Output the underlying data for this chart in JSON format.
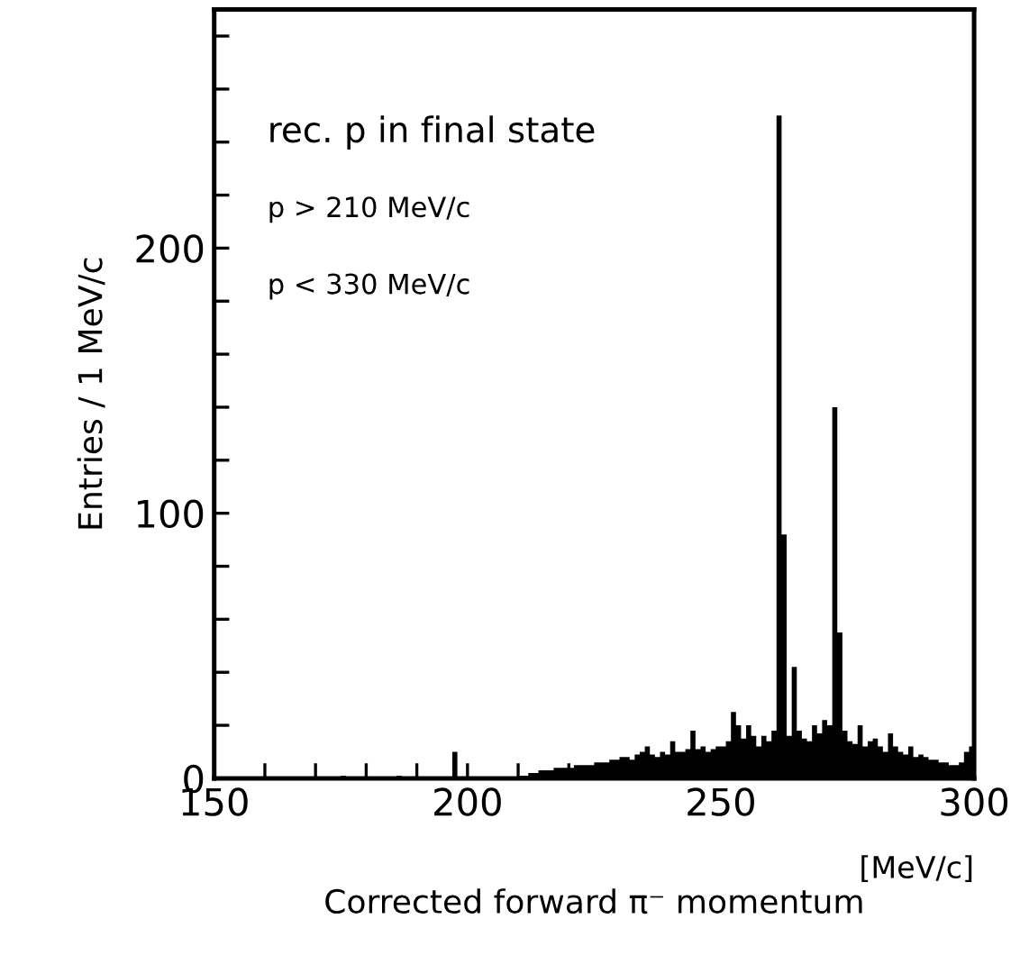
{
  "chart_data": {
    "type": "histogram",
    "xlabel": "Corrected forward π⁻ momentum",
    "ylabel": "Entries / 1 MeV/c",
    "annotations": [
      "rec. p in final state",
      "p > 210 MeV/c",
      "p < 330 MeV/c",
      "[MeV/c]"
    ],
    "bins": [
      150,
      151,
      152,
      153,
      154,
      155,
      156,
      157,
      158,
      159,
      160,
      161,
      162,
      163,
      164,
      165,
      166,
      167,
      168,
      169,
      170,
      171,
      172,
      173,
      174,
      175,
      176,
      177,
      178,
      179,
      180,
      181,
      182,
      183,
      184,
      185,
      186,
      187,
      188,
      189,
      190,
      191,
      192,
      193,
      194,
      195,
      196,
      197,
      198,
      199,
      200,
      201,
      202,
      203,
      204,
      205,
      206,
      207,
      208,
      209,
      210,
      211,
      212,
      213,
      214,
      215,
      216,
      217,
      218,
      219,
      220,
      221,
      222,
      223,
      224,
      225,
      226,
      227,
      228,
      229,
      230,
      231,
      232,
      233,
      234,
      235,
      236,
      237,
      238,
      239,
      240,
      241,
      242,
      243,
      244,
      245,
      246,
      247,
      248,
      249,
      250,
      251,
      252,
      253,
      254,
      255,
      256,
      257,
      258,
      259,
      260,
      261,
      262,
      263,
      264,
      265,
      266,
      267,
      268,
      269,
      270,
      271,
      272,
      273,
      274,
      275,
      276,
      277,
      278,
      279,
      280,
      281,
      282,
      283,
      284,
      285,
      286,
      287,
      288,
      289,
      290,
      291,
      292,
      293,
      294,
      295,
      296,
      297,
      298,
      299,
      300
    ],
    "values": [
      0,
      0,
      0,
      0,
      0,
      0,
      0,
      0,
      0,
      0,
      0,
      0,
      0,
      0,
      0,
      0,
      0,
      0,
      0,
      0,
      0,
      0,
      0,
      0,
      0,
      1,
      0,
      0,
      0,
      0,
      0,
      0,
      0,
      0,
      0,
      0,
      1,
      0,
      0,
      0,
      0,
      0,
      0,
      0,
      0,
      0,
      0,
      10,
      0,
      0,
      0,
      0,
      0,
      0,
      0,
      0,
      0,
      0,
      0,
      0,
      1,
      1,
      2,
      2,
      3,
      3,
      3,
      4,
      4,
      4,
      4,
      5,
      5,
      5,
      5,
      6,
      6,
      6,
      7,
      7,
      8,
      8,
      7,
      9,
      10,
      12,
      9,
      8,
      10,
      9,
      14,
      10,
      10,
      11,
      18,
      11,
      12,
      10,
      11,
      12,
      12,
      14,
      25,
      20,
      15,
      20,
      16,
      12,
      16,
      14,
      18,
      250,
      92,
      16,
      42,
      18,
      15,
      14,
      20,
      17,
      22,
      20,
      140,
      55,
      18,
      14,
      13,
      20,
      12,
      14,
      15,
      12,
      10,
      17,
      12,
      10,
      9,
      12,
      8,
      9,
      8,
      7,
      7,
      6,
      6,
      5,
      5,
      6,
      10,
      12
    ],
    "color": "#000000",
    "xlim": [
      150,
      300
    ],
    "xticks": [
      150,
      {
        "value": 160,
        "label": null
      },
      {
        "value": 170,
        "label": null
      },
      {
        "value": 180,
        "label": null
      },
      {
        "value": 190,
        "label": null
      },
      200,
      {
        "value": 210,
        "label": null
      },
      {
        "value": 220,
        "label": null
      },
      {
        "value": 230,
        "label": null
      },
      {
        "value": 240,
        "label": null
      },
      250,
      {
        "value": 260,
        "label": null
      },
      {
        "value": 270,
        "label": null
      },
      {
        "value": 280,
        "label": null
      },
      {
        "value": 290,
        "label": null
      },
      300
    ],
    "ylim": [
      0,
      290
    ],
    "yticks": [
      0,
      {
        "value": 20,
        "label": null
      },
      {
        "value": 40,
        "label": null
      },
      {
        "value": 60,
        "label": null
      },
      {
        "value": 80,
        "label": null
      },
      100,
      {
        "value": 120,
        "label": null
      },
      {
        "value": 140,
        "label": null
      },
      {
        "value": 160,
        "label": null
      },
      {
        "value": 180,
        "label": null
      },
      200,
      {
        "value": 220,
        "label": null
      },
      {
        "value": 240,
        "label": null
      },
      {
        "value": 260,
        "label": null
      },
      {
        "value": 280,
        "label": null
      }
    ],
    "grid": false,
    "legend": false
  }
}
